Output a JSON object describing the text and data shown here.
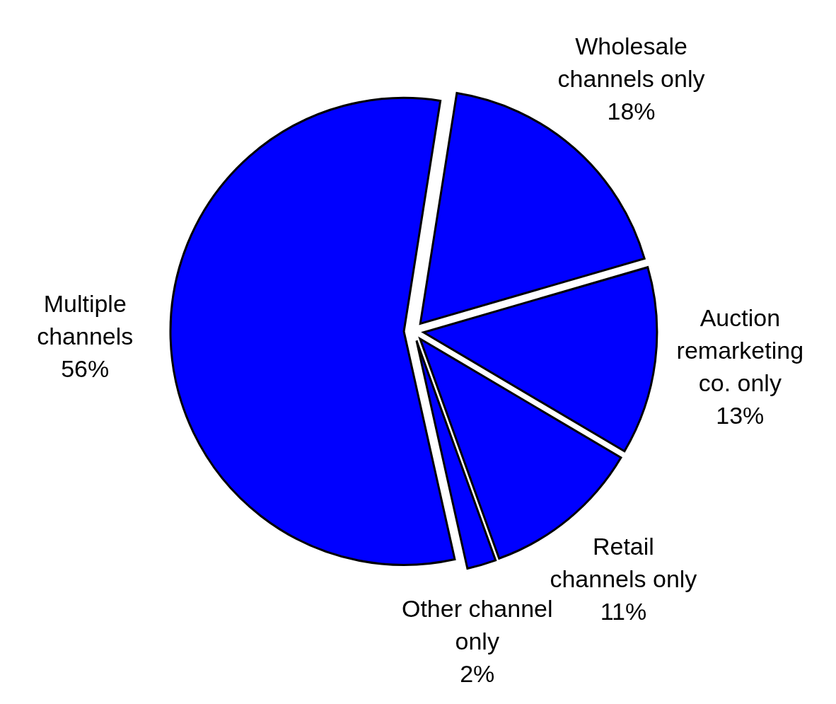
{
  "chart_data": {
    "type": "pie",
    "categories": [
      "Wholesale channels only",
      "Auction remarketing co. only",
      "Retail channels only",
      "Other channel only",
      "Multiple channels"
    ],
    "values": [
      18,
      13,
      11,
      2,
      56
    ],
    "colors": [
      "#0000ff",
      "#0000ff",
      "#0000ff",
      "#0000ff",
      "#0000ff"
    ],
    "value_labels": [
      "18%",
      "13%",
      "11%",
      "2%",
      "56%"
    ]
  }
}
